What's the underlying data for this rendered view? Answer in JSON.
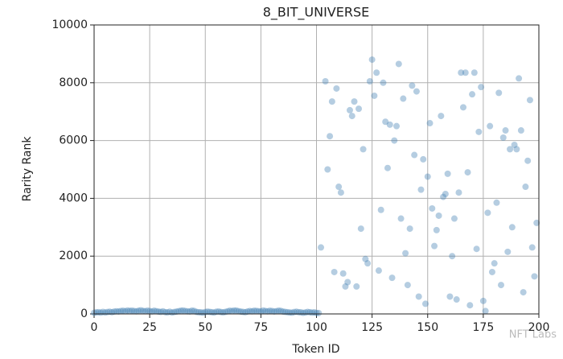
{
  "chart_data": {
    "type": "scatter",
    "title": "8_BIT_UNIVERSE",
    "x_label": "Token ID",
    "y_label": "Rarity Rank",
    "x": [
      0,
      1,
      2,
      3,
      4,
      5,
      6,
      7,
      8,
      9,
      10,
      11,
      12,
      13,
      14,
      15,
      16,
      17,
      18,
      19,
      20,
      21,
      22,
      23,
      24,
      25,
      26,
      27,
      28,
      29,
      30,
      31,
      32,
      33,
      34,
      35,
      36,
      37,
      38,
      39,
      40,
      41,
      42,
      43,
      44,
      45,
      46,
      47,
      48,
      49,
      50,
      51,
      52,
      53,
      54,
      55,
      56,
      57,
      58,
      59,
      60,
      61,
      62,
      63,
      64,
      65,
      66,
      67,
      68,
      69,
      70,
      71,
      72,
      73,
      74,
      75,
      76,
      77,
      78,
      79,
      80,
      81,
      82,
      83,
      84,
      85,
      86,
      87,
      88,
      89,
      90,
      91,
      92,
      93,
      94,
      95,
      96,
      97,
      98,
      99,
      100,
      101,
      102,
      104,
      105,
      106,
      107,
      108,
      109,
      110,
      111,
      112,
      113,
      114,
      115,
      116,
      117,
      118,
      119,
      120,
      121,
      122,
      123,
      124,
      125,
      126,
      127,
      128,
      129,
      130,
      131,
      132,
      133,
      134,
      135,
      136,
      137,
      138,
      139,
      140,
      141,
      142,
      143,
      144,
      145,
      146,
      147,
      148,
      149,
      150,
      151,
      152,
      153,
      154,
      155,
      156,
      157,
      158,
      159,
      160,
      161,
      162,
      163,
      164,
      165,
      166,
      167,
      168,
      169,
      170,
      171,
      172,
      173,
      174,
      175,
      176,
      177,
      178,
      179,
      180,
      181,
      182,
      183,
      184,
      185,
      186,
      187,
      188,
      189,
      190,
      191,
      192,
      193,
      194,
      195,
      196,
      197,
      198,
      199
    ],
    "values": [
      40,
      55,
      60,
      45,
      70,
      50,
      65,
      75,
      60,
      80,
      90,
      85,
      100,
      110,
      95,
      120,
      105,
      115,
      100,
      90,
      110,
      125,
      105,
      95,
      115,
      100,
      85,
      110,
      95,
      80,
      70,
      90,
      60,
      55,
      75,
      50,
      65,
      80,
      95,
      110,
      120,
      100,
      90,
      85,
      115,
      105,
      70,
      60,
      55,
      45,
      65,
      80,
      70,
      60,
      50,
      75,
      85,
      65,
      55,
      70,
      90,
      110,
      100,
      120,
      115,
      95,
      80,
      70,
      60,
      85,
      100,
      90,
      110,
      105,
      95,
      85,
      120,
      100,
      90,
      110,
      100,
      85,
      95,
      115,
      105,
      80,
      70,
      60,
      50,
      45,
      65,
      75,
      60,
      55,
      40,
      50,
      70,
      60,
      45,
      55,
      35,
      30,
      2300,
      8050,
      5000,
      6150,
      7350,
      1450,
      7800,
      4400,
      4200,
      1400,
      950,
      1100,
      7050,
      6850,
      7350,
      950,
      7100,
      2950,
      5700,
      1900,
      1750,
      8050,
      8800,
      7550,
      8350,
      1500,
      3600,
      8000,
      6650,
      5050,
      6550,
      1250,
      6000,
      6500,
      8650,
      3300,
      7450,
      2100,
      1000,
      2950,
      7900,
      5500,
      7700,
      600,
      4300,
      5350,
      350,
      4750,
      6600,
      3650,
      2350,
      2900,
      3400,
      6850,
      4050,
      4150,
      4850,
      600,
      2000,
      3300,
      500,
      4200,
      8350,
      7150,
      8350,
      4900,
      300,
      7600,
      8350,
      2250,
      6300,
      7850,
      450,
      100,
      3500,
      6500,
      1450,
      1750,
      3850,
      7650,
      1000,
      6100,
      6350,
      2150,
      5700,
      3000,
      5850,
      5700,
      8150,
      6350,
      750,
      4400,
      5300,
      7400,
      2300,
      1300,
      3150
    ],
    "color": "#4682b4",
    "alpha": 0.4,
    "xlim": [
      0,
      200
    ],
    "xticks": [
      0,
      25,
      50,
      75,
      100,
      125,
      150,
      175,
      200
    ],
    "ylim": [
      0,
      10000
    ],
    "yticks": [
      0,
      2000,
      4000,
      6000,
      8000,
      10000
    ],
    "grid": true,
    "watermark": "NFT Labs"
  }
}
